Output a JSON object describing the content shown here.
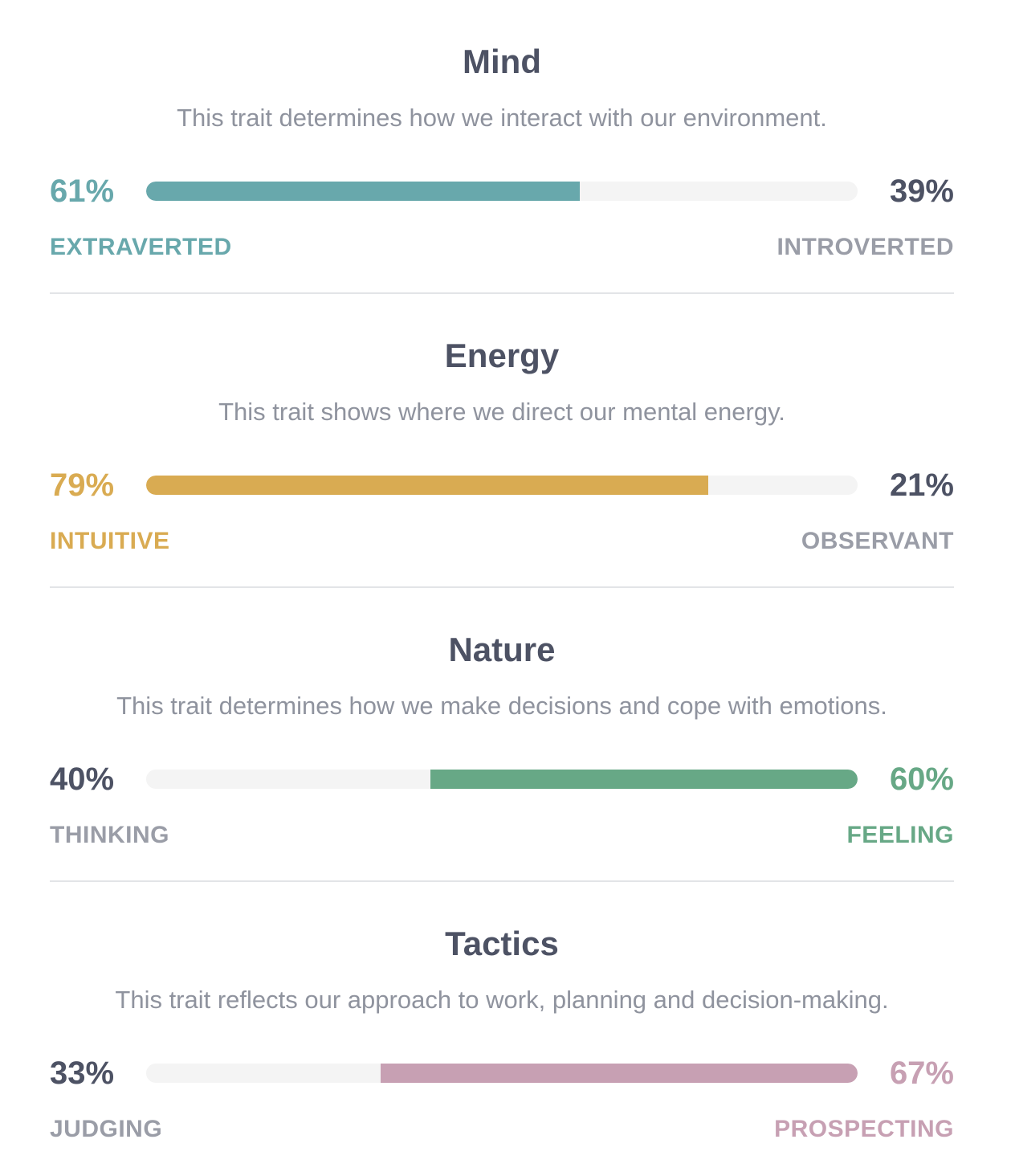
{
  "colors": {
    "mind": "#68a8ac",
    "energy": "#d9ab52",
    "nature": "#67a886",
    "tactics": "#c7a0b3",
    "dark_text": "#4d5264",
    "muted_text": "#9a9da7",
    "track": "#f4f4f4"
  },
  "traits": [
    {
      "key": "mind",
      "title": "Mind",
      "description": "This trait determines how we interact with our environment.",
      "left_pct": "61%",
      "right_pct": "39%",
      "left_label": "EXTRAVERTED",
      "right_label": "INTROVERTED",
      "dominant": "left",
      "value": 61
    },
    {
      "key": "energy",
      "title": "Energy",
      "description": "This trait shows where we direct our mental energy.",
      "left_pct": "79%",
      "right_pct": "21%",
      "left_label": "INTUITIVE",
      "right_label": "OBSERVANT",
      "dominant": "left",
      "value": 79
    },
    {
      "key": "nature",
      "title": "Nature",
      "description": "This trait determines how we make decisions and cope with emotions.",
      "left_pct": "40%",
      "right_pct": "60%",
      "left_label": "THINKING",
      "right_label": "FEELING",
      "dominant": "right",
      "value": 60
    },
    {
      "key": "tactics",
      "title": "Tactics",
      "description": "This trait reflects our approach to work, planning and decision-making.",
      "left_pct": "33%",
      "right_pct": "67%",
      "left_label": "JUDGING",
      "right_label": "PROSPECTING",
      "dominant": "right",
      "value": 67
    }
  ]
}
